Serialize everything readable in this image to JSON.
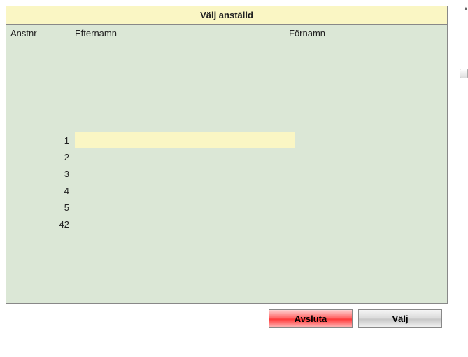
{
  "dialog": {
    "title": "Välj anställd",
    "columns": {
      "anstnr": "Anstnr",
      "efternamn": "Efternamn",
      "fornamn": "Förnamn"
    },
    "rows": [
      {
        "anstnr": "1",
        "selected": true
      },
      {
        "anstnr": "2",
        "selected": false
      },
      {
        "anstnr": "3",
        "selected": false
      },
      {
        "anstnr": "4",
        "selected": false
      },
      {
        "anstnr": "5",
        "selected": false
      },
      {
        "anstnr": "42",
        "selected": false
      }
    ],
    "buttons": {
      "cancel": "Avsluta",
      "ok": "Välj"
    }
  },
  "colors": {
    "panel_bg": "#dbe7d6",
    "highlight_bg": "#faf6c4",
    "border": "#888888",
    "btn_cancel_top": "#ffd3d3",
    "btn_cancel_mid": "#ff3b3b"
  }
}
